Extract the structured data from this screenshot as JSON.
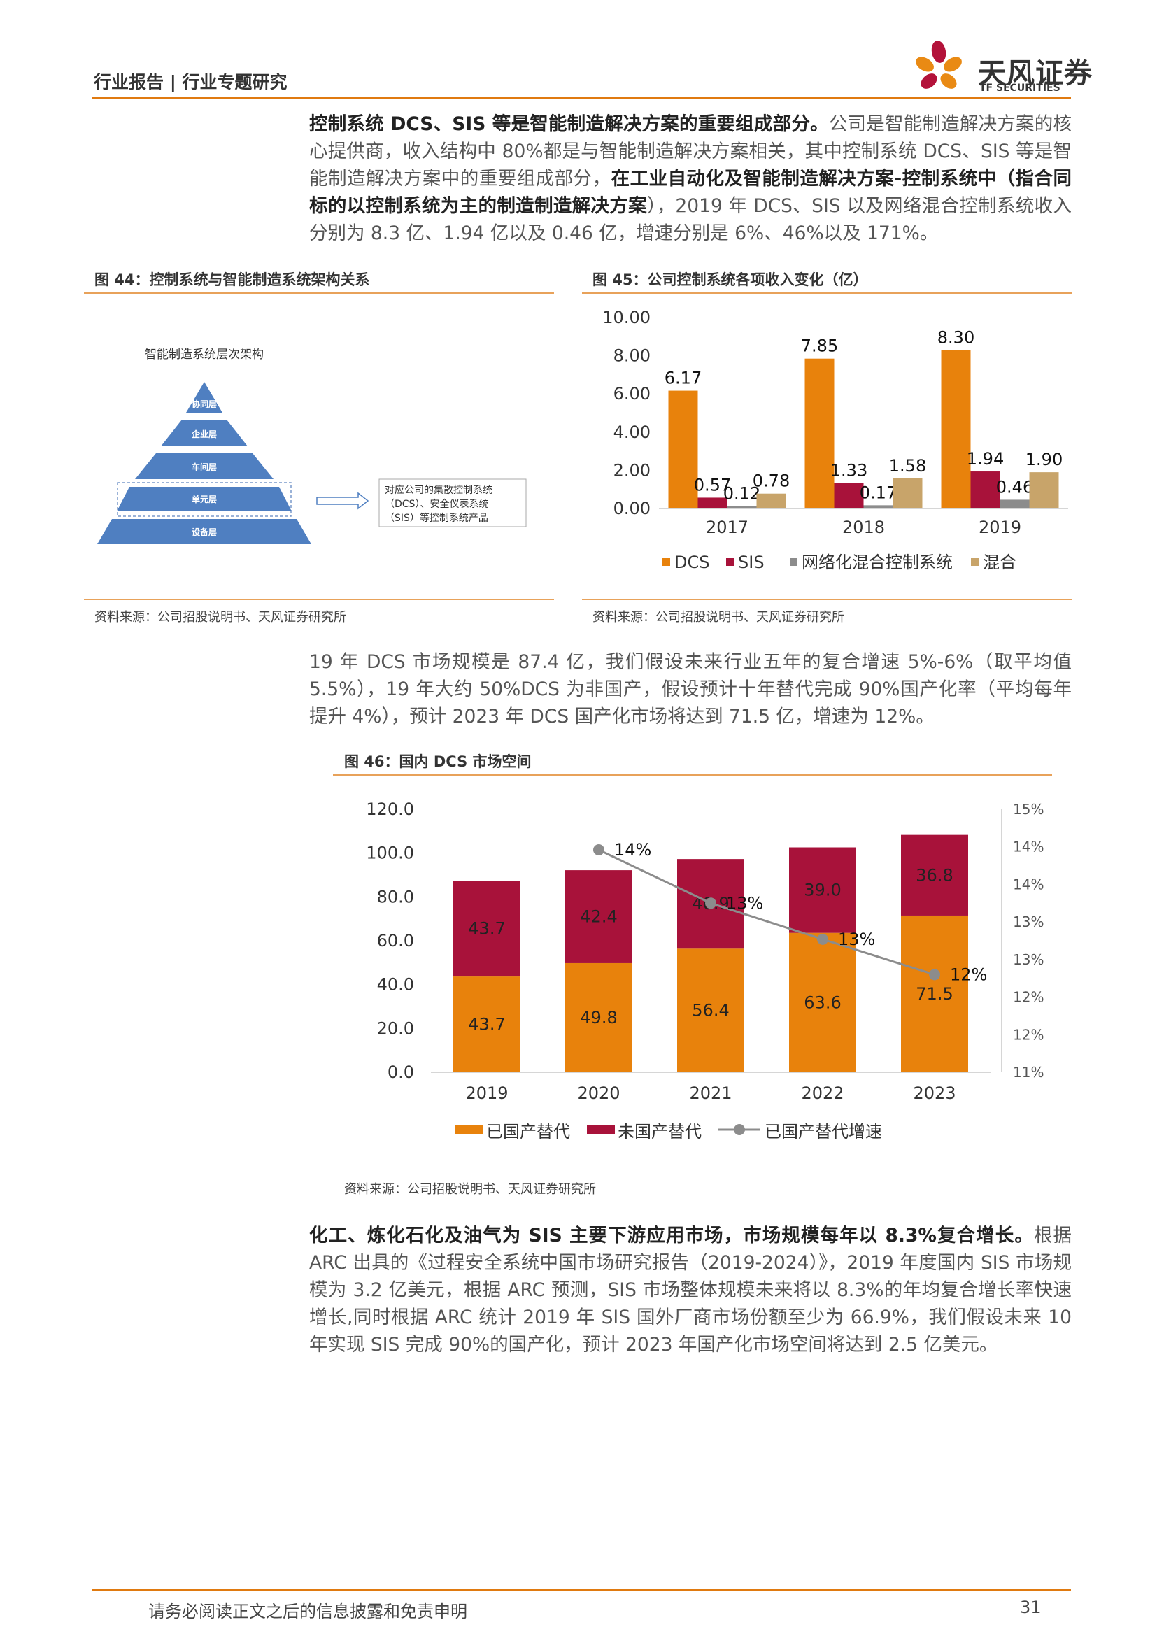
{
  "header": {
    "section": "行业报告 | 行业专题研究",
    "logo_cn": "天风证券",
    "logo_en": "TF SECURITIES"
  },
  "para1": {
    "bold1": "控制系统 DCS、SIS 等是智能制造解决方案的重要组成部分。",
    "text1": "公司是智能制造解决方案的核心提供商，收入结构中 80%都是与智能制造解决方案相关，其中控制系统 DCS、SIS 等是智能制造解决方案中的重要组成部分，",
    "bold2": "在工业自动化及智能制造解决方案-控制系统中（指合同标的以控制系统为主的制造制造解决方案",
    "text2": "），2019 年 DCS、SIS 以及网络混合控制系统收入分别为 8.3 亿、1.94 亿以及 0.46 亿，增速分别是 6%、46%以及 171%。"
  },
  "fig44": {
    "title": "图 44：控制系统与智能制造系统架构关系",
    "diagram_title": "智能制造系统层次架构",
    "layers": [
      "协同层",
      "企业层",
      "车间层",
      "单元层",
      "设备层"
    ],
    "note_lines": [
      "对应公司的集散控制系统",
      "（DCS）、安全仪表系统",
      "（SIS）等控制系统产品"
    ],
    "source": "资料来源：公司招股说明书、天风证券研究所"
  },
  "fig45": {
    "title": "图 45：公司控制系统各项收入变化（亿）",
    "source": "资料来源：公司招股说明书、天风证券研究所"
  },
  "para2": {
    "text": "19 年 DCS 市场规模是 87.4 亿，我们假设未来行业五年的复合增速 5%-6%（取平均值 5.5%），19 年大约 50%DCS 为非国产，假设预计十年替代完成 90%国产化率（平均每年提升 4%），预计 2023 年 DCS 国产化市场将达到 71.5 亿，增速为 12%。"
  },
  "fig46": {
    "title": "图 46：国内 DCS 市场空间",
    "source": "资料来源：公司招股说明书、天风证券研究所"
  },
  "para3": {
    "bold": "化工、炼化石化及油气为 SIS 主要下游应用市场，市场规模每年以 8.3%复合增长。",
    "text": "根据 ARC 出具的《过程安全系统中国市场研究报告（2019-2024）》，2019 年度国内 SIS 市场规模为 3.2 亿美元，根据 ARC 预测，SIS 市场整体规模未来将以 8.3%的年均复合增长率快速增长,同时根据 ARC 统计 2019 年 SIS 国外厂商市场份额至少为 66.9%，我们假设未来 10 年实现 SIS 完成 90%的国产化，预计 2023 年国产化市场空间将达到 2.5 亿美元。"
  },
  "footer": {
    "disclaimer": "请务必阅读正文之后的信息披露和免责申明",
    "page": "31"
  },
  "colors": {
    "orange": "#e8820c",
    "crimson": "#a8123a",
    "gray": "#8c8c8c",
    "tan": "#c8a46a",
    "pyramid": "#4f7fc1"
  },
  "chart_data": [
    {
      "type": "bar",
      "id": "fig45",
      "title": "图 45：公司控制系统各项收入变化（亿）",
      "categories": [
        "2017",
        "2018",
        "2019"
      ],
      "series": [
        {
          "name": "DCS",
          "values": [
            6.17,
            7.85,
            8.3
          ],
          "labels": [
            "6.17",
            "7.85",
            "8.30"
          ]
        },
        {
          "name": "SIS",
          "values": [
            0.57,
            1.33,
            1.94
          ],
          "labels": [
            "0.57",
            "1.33",
            "1.94"
          ]
        },
        {
          "name": "网络化混合控制系统",
          "values": [
            0.12,
            0.17,
            0.46
          ],
          "labels": [
            "0.12",
            "0.17",
            "0.46"
          ]
        },
        {
          "name": "混合",
          "values": [
            0.78,
            1.58,
            1.9
          ],
          "labels": [
            "0.78",
            "1.58",
            "1.90"
          ]
        }
      ],
      "ylim": [
        0,
        10
      ],
      "yticks": [
        "0.00",
        "2.00",
        "4.00",
        "6.00",
        "8.00",
        "10.00"
      ],
      "legend": "bottom"
    },
    {
      "type": "bar",
      "id": "fig46",
      "stacked": true,
      "title": "图 46：国内 DCS 市场空间",
      "categories": [
        "2019",
        "2020",
        "2021",
        "2022",
        "2023"
      ],
      "series": [
        {
          "name": "已国产替代",
          "values": [
            43.7,
            49.8,
            56.4,
            63.6,
            71.5
          ],
          "labels": [
            "43.7",
            "49.8",
            "56.4",
            "63.6",
            "71.5"
          ]
        },
        {
          "name": "未国产替代",
          "values": [
            43.7,
            42.4,
            40.9,
            39.0,
            36.8
          ],
          "labels": [
            "43.7",
            "42.4",
            "40.9",
            "39.0",
            "36.8"
          ]
        }
      ],
      "line": {
        "name": "已国产替代增速",
        "values": [
          null,
          13.96,
          13.25,
          12.77,
          12.3
        ],
        "labels": [
          "",
          "14%",
          "13%",
          "13%",
          "12%"
        ]
      },
      "ylim": [
        0,
        120
      ],
      "yticks": [
        "0.0",
        "20.0",
        "40.0",
        "60.0",
        "80.0",
        "100.0",
        "120.0"
      ],
      "y2lim": [
        11,
        14.5
      ],
      "y2ticks": [
        "11%",
        "12%",
        "12%",
        "13%",
        "13%",
        "14%",
        "14%",
        "15%"
      ],
      "legend": "bottom"
    }
  ]
}
